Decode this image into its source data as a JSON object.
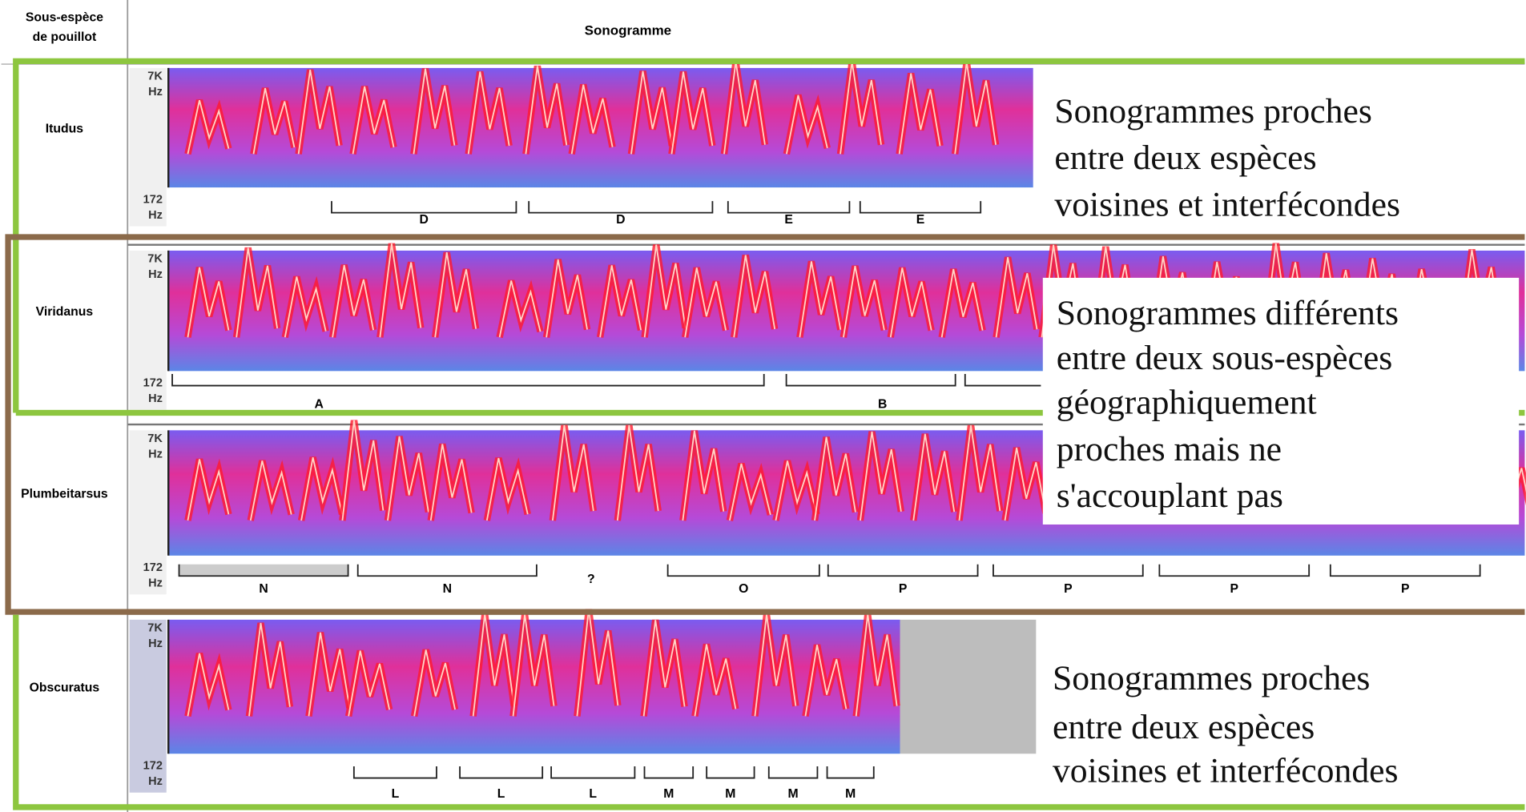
{
  "header": {
    "subspecies": [
      "Sous-espèce",
      "de pouillot"
    ],
    "sonogram": "Sonogramme"
  },
  "rows": [
    {
      "label": "Itudus",
      "freq_top": [
        "7K",
        "Hz"
      ],
      "freq_bottom": [
        "172",
        "Hz"
      ],
      "segments": [
        "D",
        "D",
        "E",
        "E"
      ]
    },
    {
      "label": "Viridanus",
      "freq_top": [
        "7K",
        "Hz"
      ],
      "freq_bottom": [
        "172",
        "Hz"
      ],
      "segments": [
        "A",
        "B"
      ]
    },
    {
      "label": "Plumbeitarsus",
      "freq_top": [
        "7K",
        "Hz"
      ],
      "freq_bottom": [
        "172",
        "Hz"
      ],
      "segments": [
        "N",
        "N",
        "?",
        "O",
        "P",
        "P",
        "P",
        "P"
      ]
    },
    {
      "label": "Obscuratus",
      "freq_top": [
        "7K",
        "Hz"
      ],
      "freq_bottom": [
        "172",
        "Hz"
      ],
      "segments": [
        "L",
        "L",
        "L",
        "M",
        "M",
        "M",
        "M"
      ]
    }
  ],
  "annotations": [
    {
      "lines": [
        "Sonogrammes proches",
        "entre deux espèces",
        "voisines et interfécondes"
      ]
    },
    {
      "lines": [
        "Sonogrammes différents",
        "entre deux sous-espèces",
        "géographiquement",
        "proches mais ne",
        "s'accouplant pas"
      ]
    },
    {
      "lines": [
        "Sonogrammes proches",
        "entre deux espèces",
        "voisines et interfécondes"
      ]
    }
  ]
}
